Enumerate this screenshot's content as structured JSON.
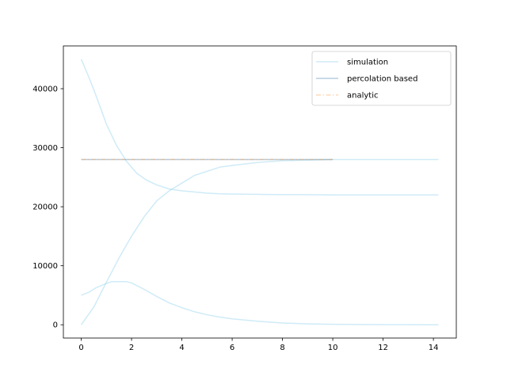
{
  "chart_data": {
    "type": "line",
    "title": "",
    "xlabel": "",
    "ylabel": "",
    "xlim": [
      -0.71,
      14.91
    ],
    "ylim": [
      -2250,
      47250
    ],
    "xticks": [
      0,
      2,
      4,
      6,
      8,
      10,
      12,
      14
    ],
    "yticks": [
      0,
      10000,
      20000,
      30000,
      40000
    ],
    "grid": false,
    "legend": {
      "position": "top-right",
      "entries": [
        {
          "label": "simulation",
          "color": "#87ceeb",
          "style": "solid"
        },
        {
          "label": "percolation based",
          "color": "#4682b4",
          "style": "solid"
        },
        {
          "label": "analytic",
          "color": "#ffa54f",
          "style": "dashdot"
        }
      ]
    },
    "series": [
      {
        "name": "simulation",
        "group": "simulation",
        "color": "#87ceeb",
        "style": "solid",
        "x": [
          0,
          0.3,
          0.6,
          1.0,
          1.4,
          1.8,
          2.2,
          2.6,
          3.0,
          3.5,
          4.0,
          4.5,
          5.0,
          5.5,
          6.0,
          7.0,
          8.0,
          9.0,
          10.0,
          11.0,
          12.0,
          13.0,
          14.2
        ],
        "values": [
          45000,
          42000,
          38700,
          34000,
          30400,
          27700,
          25700,
          24500,
          23700,
          23000,
          22700,
          22500,
          22300,
          22200,
          22150,
          22100,
          22050,
          22050,
          22000,
          22000,
          22000,
          22000,
          22000
        ]
      },
      {
        "name": "",
        "group": "simulation",
        "color": "#87ceeb",
        "style": "solid",
        "x": [
          0,
          0.5,
          1.0,
          1.5,
          2.0,
          2.5,
          3.0,
          3.5,
          4.0,
          4.5,
          5.0,
          5.5,
          6.0,
          7.0,
          8.0,
          9.0,
          10.0,
          11.0,
          12.0,
          13.0,
          14.2
        ],
        "values": [
          0,
          3000,
          7200,
          11300,
          15000,
          18300,
          21000,
          22700,
          24000,
          25300,
          26000,
          26700,
          27000,
          27500,
          27800,
          27900,
          28000,
          28000,
          28000,
          28000,
          28000
        ]
      },
      {
        "name": "",
        "group": "simulation",
        "color": "#87ceeb",
        "style": "solid",
        "x": [
          0,
          0.3,
          0.6,
          1.0,
          1.2,
          1.5,
          1.8,
          2.0,
          2.5,
          3.0,
          3.5,
          4.0,
          4.5,
          5.0,
          5.5,
          6.0,
          7.0,
          8.0,
          9.0,
          10.0,
          11.0,
          12.0,
          13.0,
          14.2
        ],
        "values": [
          5000,
          5500,
          6300,
          7000,
          7300,
          7300,
          7300,
          7100,
          6000,
          4800,
          3700,
          2900,
          2200,
          1700,
          1300,
          1000,
          600,
          300,
          150,
          80,
          40,
          20,
          10,
          0
        ]
      },
      {
        "name": "percolation based",
        "group": "percolation",
        "color": "#4682b4",
        "style": "solid",
        "x": [
          0,
          10
        ],
        "values": [
          28000,
          28000
        ]
      },
      {
        "name": "analytic",
        "group": "analytic",
        "color": "#ffa54f",
        "style": "dashdot",
        "x": [
          0,
          10
        ],
        "values": [
          28000,
          28000
        ]
      }
    ]
  }
}
